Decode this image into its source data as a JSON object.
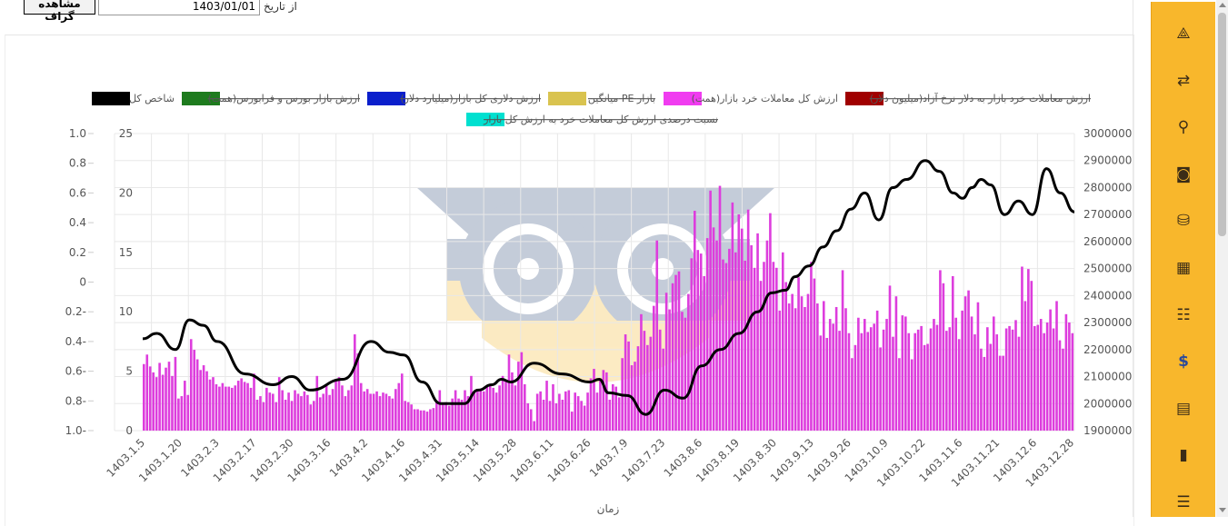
{
  "toolbar": {
    "show_label": "مشاهده گراف",
    "from_date_value": "1403/01/01",
    "from_date_label": "از تاریخ"
  },
  "sidebar": {
    "icons": [
      "analysis-icon",
      "dollar-exchange-icon",
      "search-icon",
      "watch-icon",
      "database-gear-icon",
      "map-icon",
      "user-card-icon",
      "dollar-icon",
      "book-icon",
      "bar-chart-icon",
      "sliders-icon"
    ]
  },
  "chart_data": {
    "type": "bar",
    "title": "",
    "xlabel": "زمان",
    "x_tick_labels": [
      "1403.1.5",
      "1403.1.20",
      "1403.2.3",
      "1403.2.17",
      "1403.2.30",
      "1403.3.16",
      "1403.4.2",
      "1403.4.16",
      "1403.4.31",
      "1403.5.14",
      "1403.5.28",
      "1403.6.11",
      "1403.6.26",
      "1403.7.9",
      "1403.7.23",
      "1403.8.6",
      "1403.8.19",
      "1403.8.30",
      "1403.9.13",
      "1403.9.26",
      "1403.10.9",
      "1403.10.22",
      "1403.11.6",
      "1403.11.21",
      "1403.12.6",
      "1403.12.28"
    ],
    "axes": {
      "left_outer": {
        "min": -1.0,
        "max": 1.0,
        "ticks": [
          "1.0",
          "0.8",
          "0.6",
          "0.4",
          "0.2",
          "0",
          "0.2-",
          "0.4-",
          "0.6-",
          "0.8-",
          "1.0-"
        ]
      },
      "left_inner": {
        "min": 0,
        "max": 25,
        "ticks": [
          "25",
          "20",
          "15",
          "10",
          "5",
          "0"
        ]
      },
      "right": {
        "min": 1900000,
        "max": 3000000,
        "ticks": [
          "3000000",
          "2900000",
          "2800000",
          "2700000",
          "2600000",
          "2500000",
          "2400000",
          "2300000",
          "2200000",
          "2100000",
          "2000000",
          "1900000"
        ]
      }
    },
    "legend": {
      "placement": "top",
      "entries": [
        {
          "label": "شاخص کل",
          "color": "#000000",
          "hidden": false
        },
        {
          "label": "ارزش بازار بورس و فرابورس(همت)",
          "color": "#1e7b1e",
          "hidden": true
        },
        {
          "label": "ارزش دلاری کل بازار(میلیارد دلار)",
          "color": "#0a1fcc",
          "hidden": true
        },
        {
          "label": "میانگین PE بازار",
          "color": "#d9c34f",
          "hidden": true
        },
        {
          "label": "ارزش کل معاملات خرد بازار(همت)",
          "color": "#f03cf0",
          "hidden": false
        },
        {
          "label": "ارزش معاملات خرد بازار به دلار نرخ آزاد(میلیون دلار)",
          "color": "#a00000",
          "hidden": true
        },
        {
          "label": "نسبت درصدی ارزش کل معاملات خرد به ارزش کل بازار",
          "color": "#00e0d0",
          "hidden": true
        }
      ]
    },
    "series": [
      {
        "name": "ارزش کل معاملات خرد بازار(همت)",
        "type": "bar",
        "axis": "left_inner",
        "color": "#dd3ddd",
        "values": [
          5.6,
          6.4,
          5.4,
          4.9,
          4.5,
          5.7,
          4.7,
          5.3,
          5.8,
          4.6,
          6.2,
          2.7,
          2.9,
          4.2,
          3.0,
          7.7,
          6.8,
          6.0,
          5.1,
          5.5,
          5.0,
          4.3,
          4.5,
          3.9,
          3.7,
          4.0,
          3.7,
          3.7,
          3.6,
          3.8,
          4.2,
          4.4,
          4.1,
          4.0,
          3.6,
          4.8,
          2.6,
          2.9,
          2.4,
          3.6,
          3.2,
          3.1,
          2.4,
          4.5,
          3.4,
          2.6,
          3.2,
          2.5,
          3.4,
          3.1,
          2.9,
          3.3,
          3.0,
          2.2,
          2.5,
          4.6,
          2.8,
          3.1,
          3.9,
          3.0,
          3.5,
          4.2,
          4.5,
          3.8,
          2.9,
          3.4,
          3.8,
          8.1,
          6.5,
          4.0,
          3.3,
          3.5,
          3.1,
          3.1,
          3.3,
          2.9,
          3.2,
          3.1,
          2.9,
          2.7,
          3.5,
          4.0,
          4.8,
          2.5,
          2.4,
          2.2,
          1.8,
          1.8,
          1.7,
          1.7,
          1.6,
          1.8,
          1.9,
          2.4,
          3.4,
          2.3,
          2.4,
          2.1,
          2.7,
          3.4,
          2.7,
          2.6,
          3.4,
          2.9,
          4.6,
          3.2,
          3.4,
          3.5,
          3.3,
          3.8,
          3.9,
          3.6,
          3.2,
          3.8,
          4.6,
          4.2,
          6.4,
          4.9,
          3.8,
          5.8,
          6.6,
          3.9,
          2.3,
          1.8,
          0.8,
          3.1,
          3.3,
          2.6,
          4.2,
          2.5,
          3.9,
          2.3,
          3.1,
          2.6,
          3.3,
          3.4,
          1.6,
          3.2,
          2.9,
          2.5,
          2.1,
          3.2,
          4.4,
          5.2,
          3.2,
          4.3,
          5.1,
          4.9,
          2.6,
          3.9,
          3.7,
          2.8,
          6.1,
          8.1,
          7.5,
          5.5,
          5.8,
          7.1,
          9.8,
          8.4,
          7.2,
          7.9,
          10.5,
          16.0,
          8.5,
          6.9,
          11.6,
          10.2,
          12.4,
          13.1,
          13.4,
          10.0,
          9.5,
          11.5,
          14.5,
          18.5,
          15.2,
          14.9,
          13.0,
          16.2,
          20.2,
          17.1,
          16.0,
          20.6,
          14.4,
          14.1,
          15.3,
          19.2,
          15.0,
          18.2,
          17.0,
          14.3,
          18.6,
          15.6,
          13.7,
          16.6,
          12.6,
          14.2,
          16.0,
          18.3,
          14.2,
          13.7,
          10.1,
          15.0,
          12.5,
          10.7,
          11.5,
          10.3,
          12.9,
          11.3,
          10.4,
          11.5,
          14.2,
          12.8,
          10.7,
          8.0,
          10.9,
          7.8,
          9.4,
          9.0,
          10.4,
          8.4,
          13.5,
          10.3,
          8.2,
          6.1,
          7.2,
          9.5,
          8.2,
          9.4,
          8.3,
          8.7,
          9.0,
          10.1,
          7.0,
          8.5,
          9.4,
          12.2,
          7.9,
          11.3,
          6.1,
          9.7,
          9.6,
          8.2,
          6.0,
          8.2,
          8.5,
          8.8,
          7.2,
          7.3,
          8.6,
          9.4,
          8.9,
          13.5,
          12.4,
          8.4,
          8.7,
          13.0,
          9.5,
          7.7,
          10.1,
          11.3,
          11.8,
          9.6,
          8.1,
          10.8,
          6.9,
          6.2,
          8.7,
          7.3,
          9.6,
          8.1,
          6.3,
          6.3,
          8.6,
          8.8,
          8.5,
          9.3,
          7.9,
          13.8,
          10.9,
          13.6,
          12.6,
          8.8,
          8.9,
          9.4,
          8.2,
          9.1,
          10.2,
          8.6,
          10.9,
          7.6,
          6.9,
          9.8,
          9.1,
          8.2
        ]
      },
      {
        "name": "شاخص کل",
        "type": "line",
        "axis": "right",
        "color": "#000000",
        "x_fraction": [
          0.0,
          0.015,
          0.035,
          0.05,
          0.065,
          0.08,
          0.11,
          0.14,
          0.16,
          0.18,
          0.215,
          0.245,
          0.265,
          0.28,
          0.3,
          0.32,
          0.345,
          0.36,
          0.375,
          0.385,
          0.395,
          0.42,
          0.45,
          0.48,
          0.49,
          0.5,
          0.52,
          0.54,
          0.56,
          0.58,
          0.6,
          0.62,
          0.64,
          0.66,
          0.675,
          0.69,
          0.7,
          0.715,
          0.73,
          0.745,
          0.76,
          0.775,
          0.79,
          0.805,
          0.82,
          0.84,
          0.855,
          0.87,
          0.88,
          0.89,
          0.9,
          0.91,
          0.925,
          0.94,
          0.955,
          0.97,
          0.985,
          1.0
        ],
        "values": [
          2240000,
          2260000,
          2200000,
          2310000,
          2290000,
          2230000,
          2110000,
          2070000,
          2100000,
          2050000,
          2090000,
          2230000,
          2190000,
          2180000,
          2080000,
          2000000,
          2000000,
          2050000,
          2070000,
          2090000,
          2080000,
          2150000,
          2110000,
          2080000,
          2090000,
          2040000,
          2030000,
          1960000,
          2050000,
          2020000,
          2140000,
          2200000,
          2260000,
          2340000,
          2410000,
          2420000,
          2470000,
          2510000,
          2580000,
          2640000,
          2720000,
          2780000,
          2680000,
          2800000,
          2830000,
          2900000,
          2860000,
          2780000,
          2760000,
          2800000,
          2830000,
          2810000,
          2700000,
          2750000,
          2700000,
          2870000,
          2780000,
          2710000
        ]
      }
    ]
  }
}
